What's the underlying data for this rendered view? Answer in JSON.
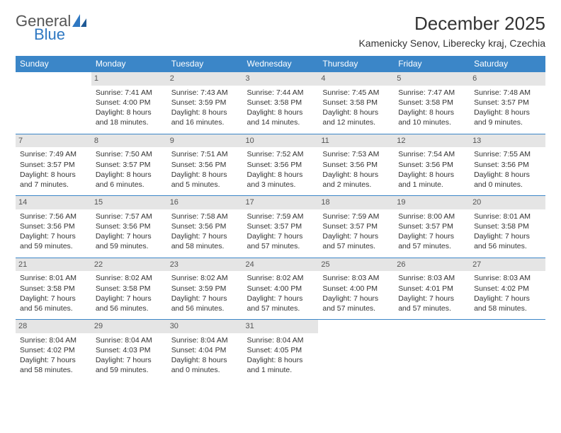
{
  "logo": {
    "text_general": "General",
    "text_blue": "Blue"
  },
  "title": "December 2025",
  "location": "Kamenicky Senov, Liberecky kraj, Czechia",
  "colors": {
    "header_bg": "#3b86c8",
    "header_text": "#ffffff",
    "daynum_bg": "#e5e5e5",
    "daynum_text": "#555555",
    "body_text": "#333333",
    "border": "#3b86c8",
    "logo_blue": "#2f78c2",
    "logo_gray": "#555555"
  },
  "day_headers": [
    "Sunday",
    "Monday",
    "Tuesday",
    "Wednesday",
    "Thursday",
    "Friday",
    "Saturday"
  ],
  "weeks": [
    [
      null,
      {
        "n": "1",
        "sr": "Sunrise: 7:41 AM",
        "ss": "Sunset: 4:00 PM",
        "dl": "Daylight: 8 hours and 18 minutes."
      },
      {
        "n": "2",
        "sr": "Sunrise: 7:43 AM",
        "ss": "Sunset: 3:59 PM",
        "dl": "Daylight: 8 hours and 16 minutes."
      },
      {
        "n": "3",
        "sr": "Sunrise: 7:44 AM",
        "ss": "Sunset: 3:58 PM",
        "dl": "Daylight: 8 hours and 14 minutes."
      },
      {
        "n": "4",
        "sr": "Sunrise: 7:45 AM",
        "ss": "Sunset: 3:58 PM",
        "dl": "Daylight: 8 hours and 12 minutes."
      },
      {
        "n": "5",
        "sr": "Sunrise: 7:47 AM",
        "ss": "Sunset: 3:58 PM",
        "dl": "Daylight: 8 hours and 10 minutes."
      },
      {
        "n": "6",
        "sr": "Sunrise: 7:48 AM",
        "ss": "Sunset: 3:57 PM",
        "dl": "Daylight: 8 hours and 9 minutes."
      }
    ],
    [
      {
        "n": "7",
        "sr": "Sunrise: 7:49 AM",
        "ss": "Sunset: 3:57 PM",
        "dl": "Daylight: 8 hours and 7 minutes."
      },
      {
        "n": "8",
        "sr": "Sunrise: 7:50 AM",
        "ss": "Sunset: 3:57 PM",
        "dl": "Daylight: 8 hours and 6 minutes."
      },
      {
        "n": "9",
        "sr": "Sunrise: 7:51 AM",
        "ss": "Sunset: 3:56 PM",
        "dl": "Daylight: 8 hours and 5 minutes."
      },
      {
        "n": "10",
        "sr": "Sunrise: 7:52 AM",
        "ss": "Sunset: 3:56 PM",
        "dl": "Daylight: 8 hours and 3 minutes."
      },
      {
        "n": "11",
        "sr": "Sunrise: 7:53 AM",
        "ss": "Sunset: 3:56 PM",
        "dl": "Daylight: 8 hours and 2 minutes."
      },
      {
        "n": "12",
        "sr": "Sunrise: 7:54 AM",
        "ss": "Sunset: 3:56 PM",
        "dl": "Daylight: 8 hours and 1 minute."
      },
      {
        "n": "13",
        "sr": "Sunrise: 7:55 AM",
        "ss": "Sunset: 3:56 PM",
        "dl": "Daylight: 8 hours and 0 minutes."
      }
    ],
    [
      {
        "n": "14",
        "sr": "Sunrise: 7:56 AM",
        "ss": "Sunset: 3:56 PM",
        "dl": "Daylight: 7 hours and 59 minutes."
      },
      {
        "n": "15",
        "sr": "Sunrise: 7:57 AM",
        "ss": "Sunset: 3:56 PM",
        "dl": "Daylight: 7 hours and 59 minutes."
      },
      {
        "n": "16",
        "sr": "Sunrise: 7:58 AM",
        "ss": "Sunset: 3:56 PM",
        "dl": "Daylight: 7 hours and 58 minutes."
      },
      {
        "n": "17",
        "sr": "Sunrise: 7:59 AM",
        "ss": "Sunset: 3:57 PM",
        "dl": "Daylight: 7 hours and 57 minutes."
      },
      {
        "n": "18",
        "sr": "Sunrise: 7:59 AM",
        "ss": "Sunset: 3:57 PM",
        "dl": "Daylight: 7 hours and 57 minutes."
      },
      {
        "n": "19",
        "sr": "Sunrise: 8:00 AM",
        "ss": "Sunset: 3:57 PM",
        "dl": "Daylight: 7 hours and 57 minutes."
      },
      {
        "n": "20",
        "sr": "Sunrise: 8:01 AM",
        "ss": "Sunset: 3:58 PM",
        "dl": "Daylight: 7 hours and 56 minutes."
      }
    ],
    [
      {
        "n": "21",
        "sr": "Sunrise: 8:01 AM",
        "ss": "Sunset: 3:58 PM",
        "dl": "Daylight: 7 hours and 56 minutes."
      },
      {
        "n": "22",
        "sr": "Sunrise: 8:02 AM",
        "ss": "Sunset: 3:58 PM",
        "dl": "Daylight: 7 hours and 56 minutes."
      },
      {
        "n": "23",
        "sr": "Sunrise: 8:02 AM",
        "ss": "Sunset: 3:59 PM",
        "dl": "Daylight: 7 hours and 56 minutes."
      },
      {
        "n": "24",
        "sr": "Sunrise: 8:02 AM",
        "ss": "Sunset: 4:00 PM",
        "dl": "Daylight: 7 hours and 57 minutes."
      },
      {
        "n": "25",
        "sr": "Sunrise: 8:03 AM",
        "ss": "Sunset: 4:00 PM",
        "dl": "Daylight: 7 hours and 57 minutes."
      },
      {
        "n": "26",
        "sr": "Sunrise: 8:03 AM",
        "ss": "Sunset: 4:01 PM",
        "dl": "Daylight: 7 hours and 57 minutes."
      },
      {
        "n": "27",
        "sr": "Sunrise: 8:03 AM",
        "ss": "Sunset: 4:02 PM",
        "dl": "Daylight: 7 hours and 58 minutes."
      }
    ],
    [
      {
        "n": "28",
        "sr": "Sunrise: 8:04 AM",
        "ss": "Sunset: 4:02 PM",
        "dl": "Daylight: 7 hours and 58 minutes."
      },
      {
        "n": "29",
        "sr": "Sunrise: 8:04 AM",
        "ss": "Sunset: 4:03 PM",
        "dl": "Daylight: 7 hours and 59 minutes."
      },
      {
        "n": "30",
        "sr": "Sunrise: 8:04 AM",
        "ss": "Sunset: 4:04 PM",
        "dl": "Daylight: 8 hours and 0 minutes."
      },
      {
        "n": "31",
        "sr": "Sunrise: 8:04 AM",
        "ss": "Sunset: 4:05 PM",
        "dl": "Daylight: 8 hours and 1 minute."
      },
      null,
      null,
      null
    ]
  ]
}
